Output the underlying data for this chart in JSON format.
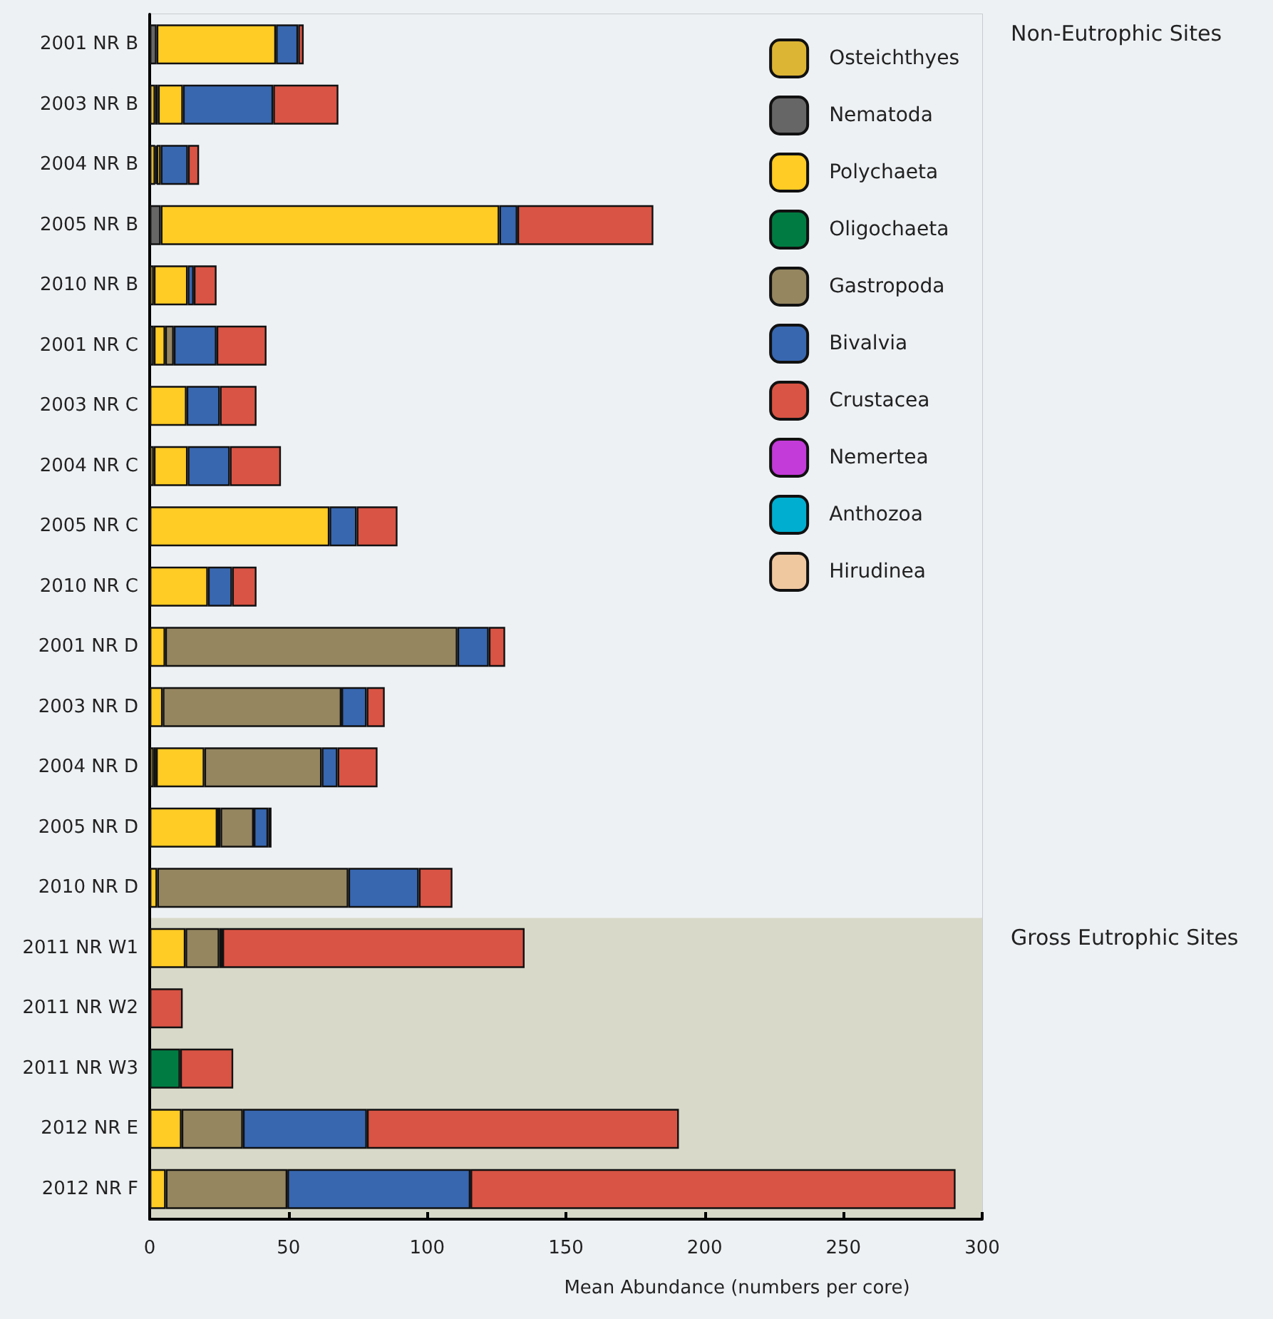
{
  "chart_data": {
    "type": "bar",
    "orientation": "horizontal",
    "stacked": true,
    "xlabel": "Mean Abundance (numbers per core)",
    "categories": [
      "2001 NR B",
      "2003 NR B",
      "2004 NR B",
      "2005 NR B",
      "2010 NR B",
      "2001 NR C",
      "2003 NR C",
      "2004 NR C",
      "2005 NR C",
      "2010 NR C",
      "2001 NR D",
      "2003 NR D",
      "2004 NR D",
      "2005 NR D",
      "2010 NR D",
      "2011 NR W1",
      "2011 NR W2",
      "2011 NR W3",
      "2012 NR E",
      "2012 NR F"
    ],
    "series": [
      {
        "name": "Osteichthyes",
        "color": "#ddb535",
        "values": [
          null,
          2,
          2,
          null,
          1.5,
          null,
          null,
          1.5,
          null,
          null,
          null,
          null,
          1.5,
          null,
          null,
          null,
          null,
          null,
          null,
          null
        ]
      },
      {
        "name": "Nematoda",
        "color": "#666666",
        "values": [
          2.5,
          1,
          0.5,
          4,
          null,
          1.5,
          null,
          null,
          null,
          null,
          null,
          null,
          0.8,
          null,
          null,
          null,
          null,
          null,
          null,
          null
        ]
      },
      {
        "name": "Polychaeta",
        "color": "#ffcb25",
        "values": [
          43,
          9,
          1.5,
          122,
          12.2,
          4.1,
          13.3,
          12.2,
          64.8,
          21,
          5.6,
          4.7,
          17.4,
          24.4,
          2.7,
          12.9,
          null,
          null,
          11.5,
          5.8
        ]
      },
      {
        "name": "Oligochaeta",
        "color": "#007c42",
        "values": [
          null,
          null,
          null,
          null,
          null,
          null,
          null,
          null,
          null,
          null,
          null,
          null,
          null,
          1.1,
          null,
          null,
          null,
          11,
          null,
          null
        ]
      },
      {
        "name": "Gastropoda",
        "color": "#958660",
        "values": [
          null,
          null,
          null,
          null,
          null,
          3.1,
          null,
          null,
          null,
          null,
          105.3,
          64.4,
          42.3,
          12,
          68.9,
          12.2,
          null,
          null,
          22.1,
          43.8
        ]
      },
      {
        "name": "Bivalvia",
        "color": "#3867b0",
        "values": [
          8,
          32.5,
          9.8,
          6.5,
          2.2,
          15.4,
          12,
          15.2,
          9.8,
          8.7,
          11.3,
          9.1,
          5.7,
          5.2,
          25.4,
          1.1,
          null,
          null,
          44.7,
          66
        ]
      },
      {
        "name": "Crustacea",
        "color": "#d95444",
        "values": [
          2,
          23.5,
          4,
          49,
          8.2,
          18,
          13.2,
          18.4,
          14.7,
          8.8,
          5.9,
          6.5,
          14.4,
          1.2,
          12.1,
          108.9,
          11.9,
          19.1,
          112.4,
          174.8
        ]
      },
      {
        "name": "Nemertea",
        "color": "#c33bd8",
        "values": [
          null,
          null,
          null,
          null,
          null,
          null,
          null,
          null,
          null,
          null,
          null,
          null,
          null,
          null,
          null,
          null,
          null,
          null,
          null,
          null
        ]
      },
      {
        "name": "Anthozoa",
        "color": "#00aed0",
        "values": [
          null,
          null,
          null,
          null,
          null,
          null,
          null,
          null,
          null,
          null,
          null,
          null,
          null,
          null,
          null,
          null,
          null,
          null,
          null,
          null
        ]
      },
      {
        "name": "Hirudinea",
        "color": "#f0c8a0",
        "values": [
          null,
          null,
          null,
          null,
          null,
          null,
          null,
          null,
          null,
          null,
          null,
          null,
          null,
          null,
          null,
          null,
          null,
          null,
          null,
          null
        ]
      }
    ],
    "xlim": [
      0,
      300
    ],
    "xticks": [
      0,
      50,
      100,
      150,
      200,
      250,
      300
    ],
    "grid": false,
    "legend": "top right",
    "bands": [
      {
        "axis": "y",
        "from": "2001 NR B",
        "to": "2010 NR D",
        "label": "Non-Eutrophic Sites",
        "color": "#eef1f4"
      },
      {
        "axis": "y",
        "from": "2011 NR W1",
        "to": "2012 NR F",
        "label": "Gross Eutrophic Sites",
        "color": "#d8d9c8"
      }
    ]
  }
}
